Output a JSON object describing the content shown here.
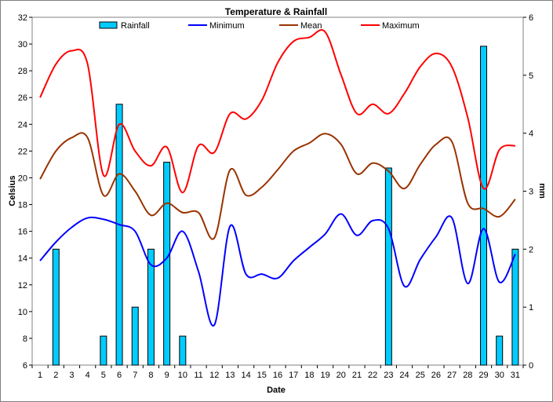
{
  "chart_data": {
    "type": "bar+line",
    "title": "Temperature & Rainfall",
    "xlabel": "Date",
    "ylabel_left": "Celsius",
    "ylabel_right": "mm",
    "x": [
      1,
      2,
      3,
      4,
      5,
      6,
      7,
      8,
      9,
      10,
      11,
      12,
      13,
      14,
      15,
      16,
      17,
      18,
      19,
      20,
      21,
      22,
      23,
      24,
      25,
      26,
      27,
      28,
      29,
      30,
      31
    ],
    "ylim_left": [
      6,
      32
    ],
    "yticks_left": [
      6,
      8,
      10,
      12,
      14,
      16,
      18,
      20,
      22,
      24,
      26,
      28,
      30,
      32
    ],
    "ylim_right": [
      0,
      6
    ],
    "yticks_right": [
      0,
      1,
      2,
      3,
      4,
      5,
      6
    ],
    "legend_position": "top",
    "grid": false,
    "series": [
      {
        "name": "Rainfall",
        "kind": "bar",
        "axis": "right",
        "color": "#00CCFF",
        "values": [
          0,
          2.0,
          0,
          0,
          0.5,
          4.5,
          1.0,
          2.0,
          3.5,
          0.5,
          0,
          0,
          0,
          0,
          0,
          0,
          0,
          0,
          0,
          0,
          0,
          0,
          3.4,
          0,
          0,
          0,
          0,
          0,
          5.5,
          0.5,
          2.0
        ]
      },
      {
        "name": "Minimum",
        "kind": "line",
        "axis": "left",
        "color": "#0000FF",
        "values": [
          13.8,
          15.2,
          16.3,
          17.0,
          16.9,
          16.5,
          16.0,
          13.5,
          14.0,
          16.0,
          13.0,
          9.0,
          16.4,
          12.8,
          12.8,
          12.5,
          13.8,
          14.8,
          15.8,
          17.3,
          15.7,
          16.8,
          16.2,
          11.9,
          13.9,
          15.6,
          17.0,
          12.1,
          16.2,
          12.2,
          14.3
        ]
      },
      {
        "name": "Mean",
        "kind": "line",
        "axis": "left",
        "color": "#993300",
        "values": [
          19.9,
          22.0,
          23.0,
          23.0,
          18.7,
          20.3,
          19.0,
          17.2,
          18.1,
          17.4,
          17.4,
          15.5,
          20.6,
          18.7,
          19.3,
          20.6,
          22.0,
          22.6,
          23.3,
          22.5,
          20.3,
          21.1,
          20.5,
          19.2,
          21.0,
          22.5,
          22.7,
          18.1,
          17.7,
          17.1,
          18.4
        ]
      },
      {
        "name": "Maximum",
        "kind": "line",
        "axis": "left",
        "color": "#FF0000",
        "values": [
          26.0,
          28.5,
          29.5,
          28.5,
          20.2,
          24.0,
          22.0,
          20.9,
          22.3,
          18.9,
          22.4,
          21.9,
          24.8,
          24.4,
          25.8,
          28.6,
          30.2,
          30.5,
          30.9,
          27.7,
          24.8,
          25.5,
          24.8,
          26.3,
          28.3,
          29.3,
          28.3,
          24.5,
          19.2,
          22.1,
          22.4
        ]
      }
    ]
  }
}
